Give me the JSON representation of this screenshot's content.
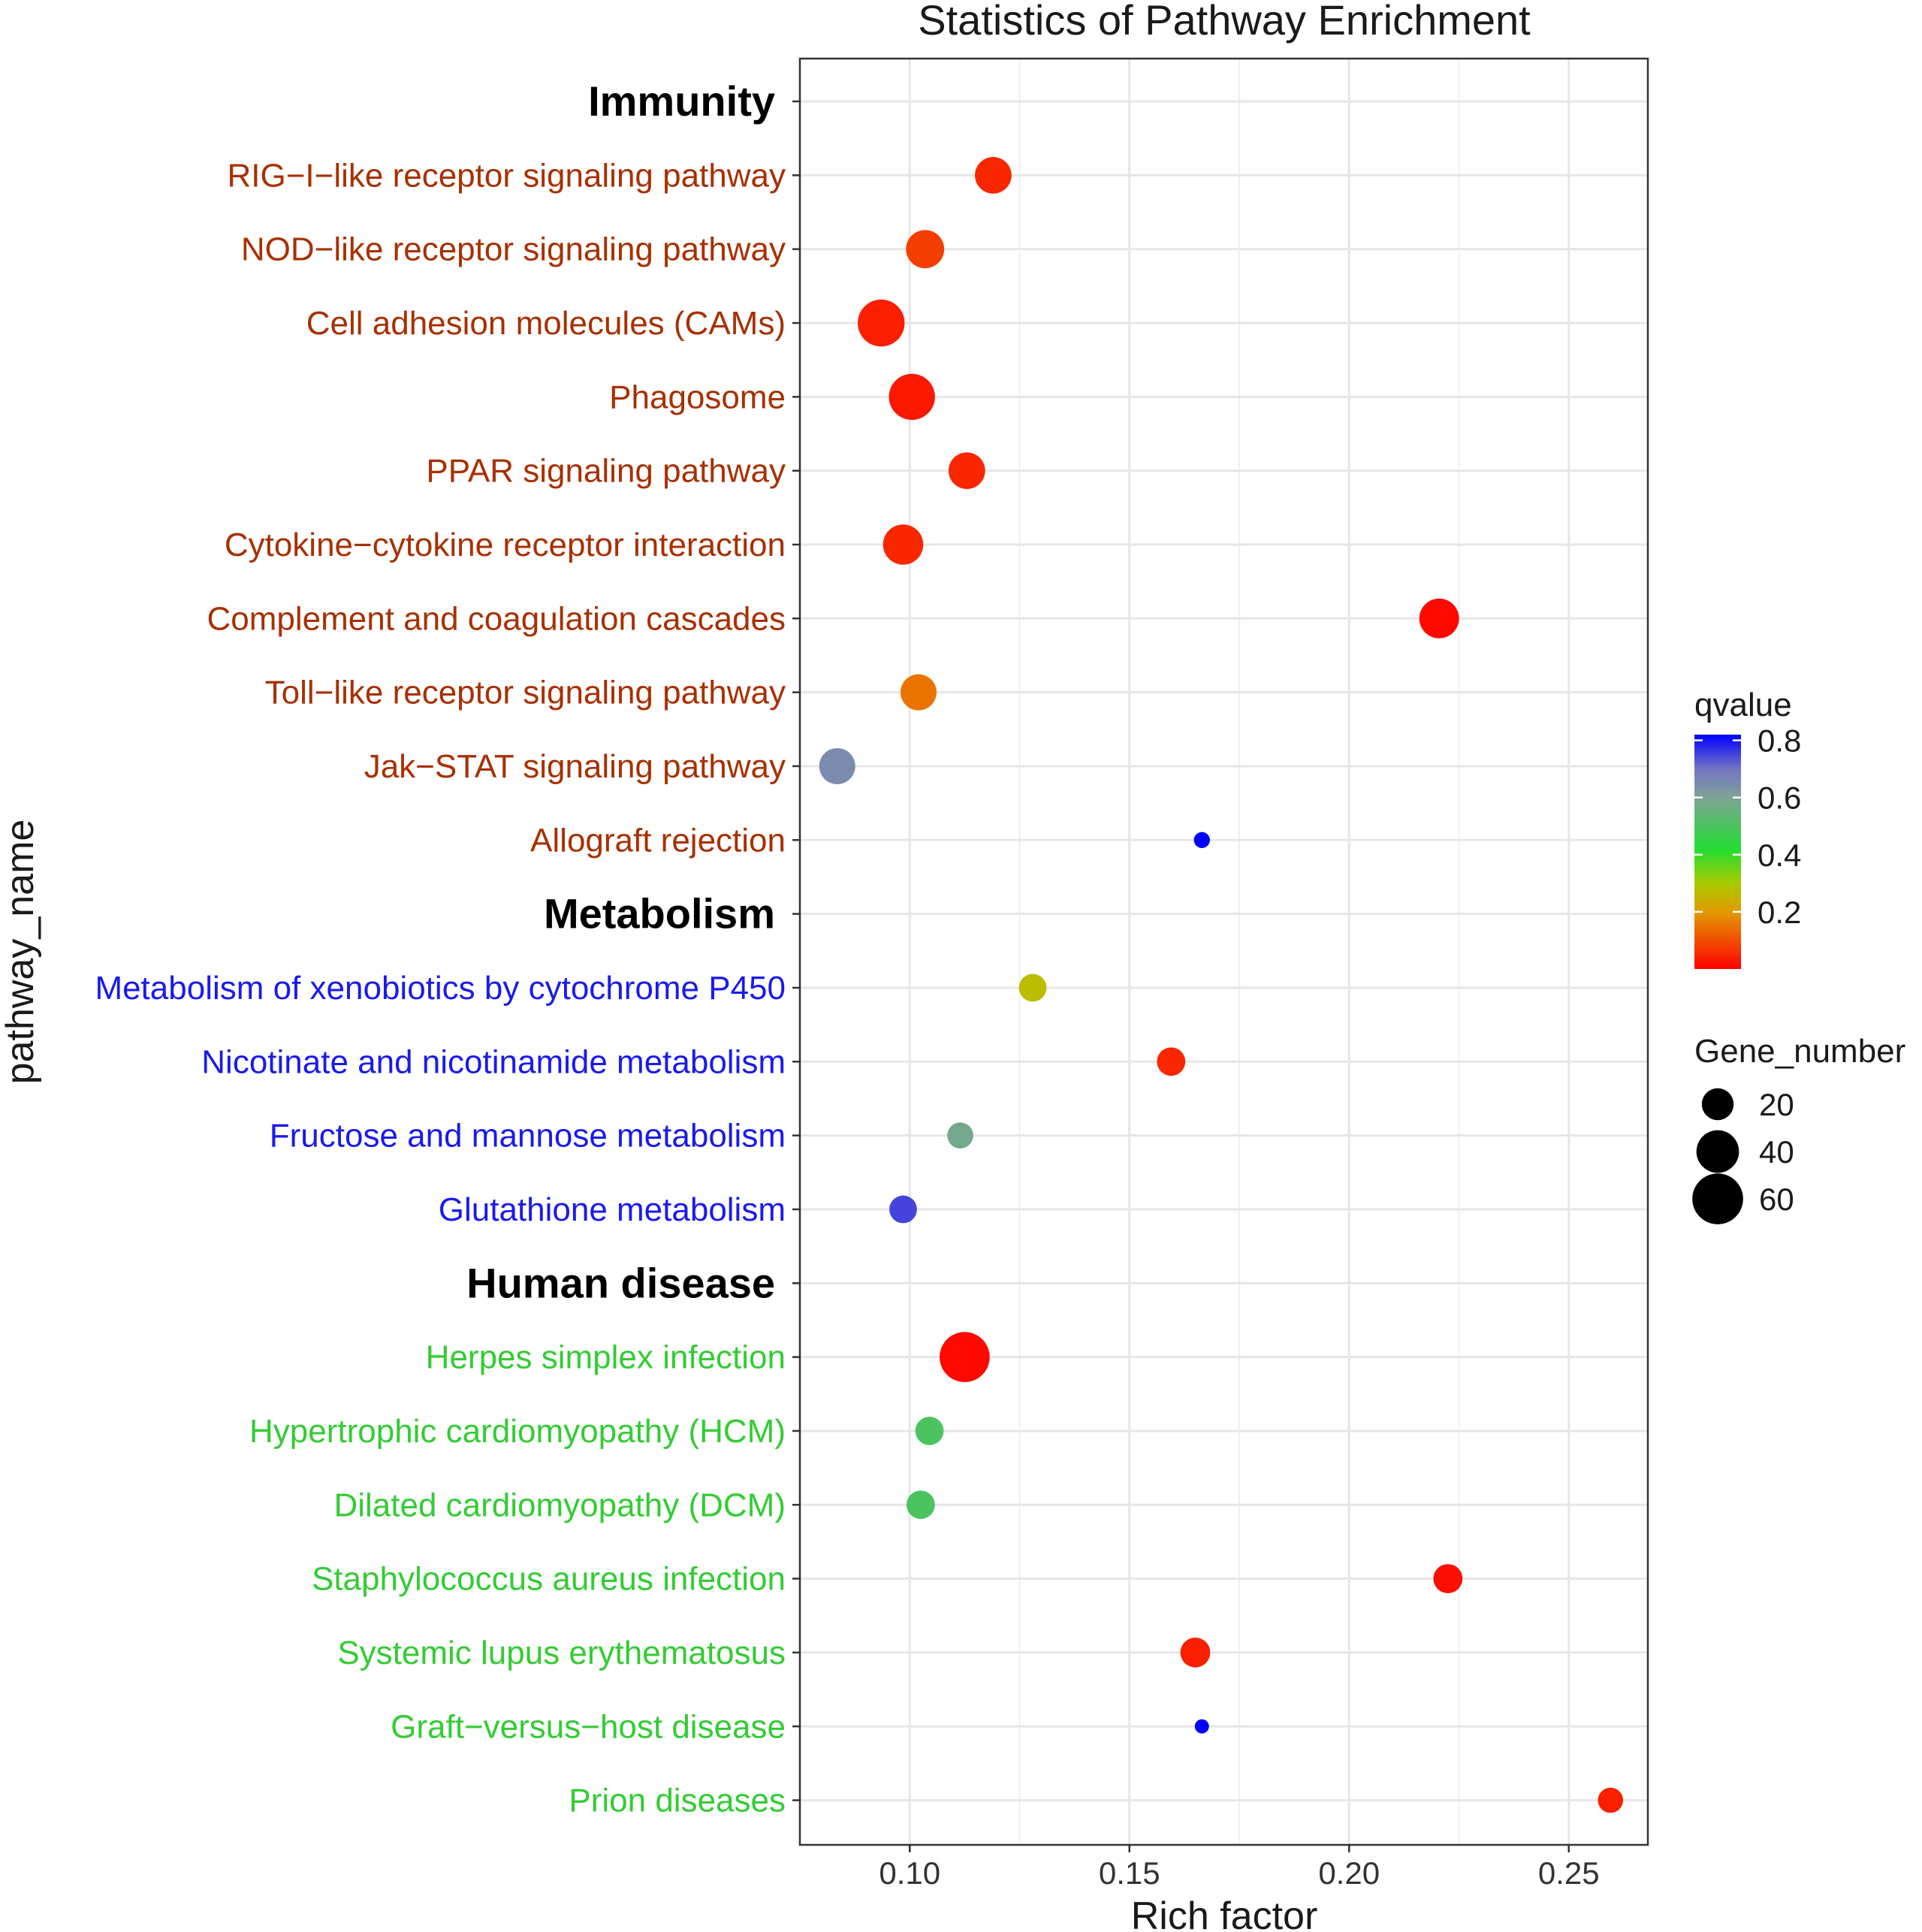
{
  "chart_data": {
    "type": "scatter",
    "title": "Statistics of Pathway Enrichment",
    "xlabel": "Rich factor",
    "ylabel": "pathway_name",
    "xlim": [
      0.075,
      0.268
    ],
    "xticks": [
      0.1,
      0.15,
      0.2,
      0.25
    ],
    "xtick_labels": [
      "0.10",
      "0.15",
      "0.20",
      "0.25"
    ],
    "grid": true,
    "groups": [
      {
        "name": "Immunity",
        "color": "#a83000"
      },
      {
        "name": "Metabolism",
        "color": "#1a1aee"
      },
      {
        "name": "Human disease",
        "color": "#33cc33"
      }
    ],
    "rows": [
      {
        "kind": "group",
        "label": "Immunity"
      },
      {
        "kind": "point",
        "label": "RIG−I−like receptor signaling pathway",
        "group": 0,
        "x": 0.119,
        "qvalue": 0.05,
        "genes": 28
      },
      {
        "kind": "point",
        "label": "NOD−like receptor signaling pathway",
        "group": 0,
        "x": 0.1035,
        "qvalue": 0.08,
        "genes": 31
      },
      {
        "kind": "point",
        "label": "Cell adhesion molecules (CAMs)",
        "group": 0,
        "x": 0.0935,
        "qvalue": 0.04,
        "genes": 50
      },
      {
        "kind": "point",
        "label": "Phagosome",
        "group": 0,
        "x": 0.1005,
        "qvalue": 0.03,
        "genes": 48
      },
      {
        "kind": "point",
        "label": "PPAR signaling pathway",
        "group": 0,
        "x": 0.113,
        "qvalue": 0.05,
        "genes": 28
      },
      {
        "kind": "point",
        "label": "Cytokine−cytokine receptor interaction",
        "group": 0,
        "x": 0.0985,
        "qvalue": 0.05,
        "genes": 35
      },
      {
        "kind": "point",
        "label": "Complement and coagulation cascades",
        "group": 0,
        "x": 0.2205,
        "qvalue": 0.01,
        "genes": 34
      },
      {
        "kind": "point",
        "label": "Toll−like receptor signaling pathway",
        "group": 0,
        "x": 0.102,
        "qvalue": 0.15,
        "genes": 27
      },
      {
        "kind": "point",
        "label": "Jak−STAT signaling pathway",
        "group": 0,
        "x": 0.0835,
        "qvalue": 0.65,
        "genes": 27
      },
      {
        "kind": "point",
        "label": "Allograft rejection",
        "group": 0,
        "x": 0.1665,
        "qvalue": 0.82,
        "genes": 3
      },
      {
        "kind": "group",
        "label": "Metabolism"
      },
      {
        "kind": "point",
        "label": "Metabolism of xenobiotics by cytochrome P450",
        "group": 1,
        "x": 0.128,
        "qvalue": 0.27,
        "genes": 14
      },
      {
        "kind": "point",
        "label": "Nicotinate and nicotinamide metabolism",
        "group": 1,
        "x": 0.1595,
        "qvalue": 0.05,
        "genes": 15
      },
      {
        "kind": "point",
        "label": "Fructose and mannose metabolism",
        "group": 1,
        "x": 0.1115,
        "qvalue": 0.58,
        "genes": 12
      },
      {
        "kind": "point",
        "label": "Glutathione metabolism",
        "group": 1,
        "x": 0.0985,
        "qvalue": 0.75,
        "genes": 14
      },
      {
        "kind": "group",
        "label": "Human disease"
      },
      {
        "kind": "point",
        "label": "Herpes simplex infection",
        "group": 2,
        "x": 0.1125,
        "qvalue": 0.01,
        "genes": 58
      },
      {
        "kind": "point",
        "label": "Hypertrophic cardiomyopathy (HCM)",
        "group": 2,
        "x": 0.1045,
        "qvalue": 0.5,
        "genes": 15
      },
      {
        "kind": "point",
        "label": "Dilated cardiomyopathy (DCM)",
        "group": 2,
        "x": 0.1025,
        "qvalue": 0.5,
        "genes": 15
      },
      {
        "kind": "point",
        "label": "Staphylococcus aureus infection",
        "group": 2,
        "x": 0.2225,
        "qvalue": 0.02,
        "genes": 16
      },
      {
        "kind": "point",
        "label": "Systemic lupus erythematosus",
        "group": 2,
        "x": 0.165,
        "qvalue": 0.04,
        "genes": 17
      },
      {
        "kind": "point",
        "label": "Graft−versus−host disease",
        "group": 2,
        "x": 0.1665,
        "qvalue": 0.82,
        "genes": 2
      },
      {
        "kind": "point",
        "label": "Prion diseases",
        "group": 2,
        "x": 0.2595,
        "qvalue": 0.04,
        "genes": 11
      }
    ],
    "color_legend": {
      "title": "qvalue",
      "range": [
        0,
        0.82
      ],
      "ticks": [
        0.2,
        0.4,
        0.6,
        0.8
      ],
      "tick_labels": [
        "0.2",
        "0.4",
        "0.6",
        "0.8"
      ],
      "stops": [
        {
          "q": 0.0,
          "color": "#ff0000"
        },
        {
          "q": 0.2,
          "color": "#e39a00"
        },
        {
          "q": 0.3,
          "color": "#a8cc00"
        },
        {
          "q": 0.42,
          "color": "#22dd33"
        },
        {
          "q": 0.6,
          "color": "#7fa397"
        },
        {
          "q": 0.7,
          "color": "#7474c4"
        },
        {
          "q": 0.82,
          "color": "#0000ff"
        }
      ]
    },
    "size_legend": {
      "title": "Gene_number",
      "values": [
        20,
        40,
        60
      ],
      "labels": [
        "20",
        "40",
        "60"
      ]
    }
  }
}
